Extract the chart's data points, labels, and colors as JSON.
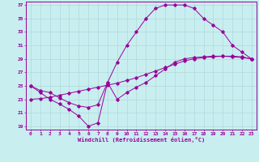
{
  "xlabel": "Windchill (Refroidissement éolien,°C)",
  "xlim": [
    -0.5,
    23.5
  ],
  "ylim": [
    18.5,
    37.5
  ],
  "yticks": [
    19,
    21,
    23,
    25,
    27,
    29,
    31,
    33,
    35,
    37
  ],
  "xticks": [
    0,
    1,
    2,
    3,
    4,
    5,
    6,
    7,
    8,
    9,
    10,
    11,
    12,
    13,
    14,
    15,
    16,
    17,
    18,
    19,
    20,
    21,
    22,
    23
  ],
  "bg_color": "#c8eef0",
  "line_color": "#990099",
  "grid_color": "#b0d8da",
  "line1_x": [
    0,
    1,
    2,
    3,
    4,
    5,
    6,
    7,
    8,
    9,
    10,
    11,
    12,
    13,
    14,
    15,
    16,
    17,
    18,
    19,
    20,
    21,
    22,
    23
  ],
  "line1_y": [
    25,
    24.3,
    24.0,
    23.2,
    22.5,
    22.0,
    21.8,
    22.2,
    25.5,
    28.5,
    31,
    33,
    35,
    36.5,
    37,
    37,
    37,
    36.5,
    35,
    34,
    33,
    31,
    30,
    29
  ],
  "line2_x": [
    0,
    1,
    2,
    3,
    4,
    5,
    6,
    7,
    8,
    9,
    10,
    11,
    12,
    13,
    14,
    15,
    16,
    17,
    18,
    19,
    20,
    21,
    22,
    23
  ],
  "line2_y": [
    23,
    23.1,
    23.3,
    23.6,
    23.9,
    24.2,
    24.5,
    24.8,
    25.1,
    25.4,
    25.8,
    26.2,
    26.7,
    27.2,
    27.7,
    28.2,
    28.7,
    29.0,
    29.2,
    29.3,
    29.4,
    29.4,
    29.3,
    29.0
  ],
  "line3_x": [
    0,
    1,
    2,
    3,
    4,
    5,
    6,
    7,
    8,
    9,
    10,
    11,
    12,
    13,
    14,
    15,
    16,
    17,
    18,
    19,
    20,
    21,
    22,
    23
  ],
  "line3_y": [
    25,
    24.0,
    23.0,
    22.3,
    21.5,
    20.5,
    19.0,
    19.5,
    25.5,
    23.0,
    24.0,
    24.8,
    25.5,
    26.5,
    27.5,
    28.5,
    29.0,
    29.2,
    29.3,
    29.4,
    29.4,
    29.3,
    29.2,
    29.0
  ]
}
